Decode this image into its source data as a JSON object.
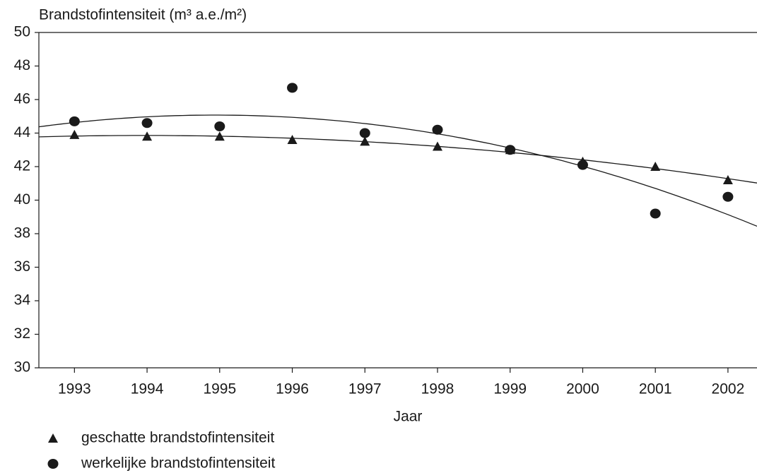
{
  "chart_data": {
    "type": "scatter",
    "title": "Brandstofintensiteit (m³ a.e./m²)",
    "x_label": "Jaar",
    "x": [
      1993,
      1994,
      1995,
      1996,
      1997,
      1998,
      1999,
      2000,
      2001,
      2002
    ],
    "series": [
      {
        "name": "geschatte brandstofintensiteit",
        "color": "#1a1a1a",
        "marker": "triangle",
        "values": [
          43.9,
          43.8,
          43.8,
          43.6,
          43.5,
          43.2,
          43.0,
          42.3,
          42.0,
          41.2
        ]
      },
      {
        "name": "werkelijke brandstofintensiteit",
        "color": "#1a1a1a",
        "marker": "circle",
        "values": [
          44.7,
          44.6,
          44.4,
          46.7,
          44.0,
          44.2,
          43.0,
          42.1,
          39.2,
          40.2
        ]
      }
    ],
    "trendline": "quadratic",
    "xlim": [
      1992.51,
      2002.4
    ],
    "xticks": [
      1993,
      1994,
      1995,
      1996,
      1997,
      1998,
      1999,
      2000,
      2001,
      2002
    ],
    "ylim": [
      30,
      50
    ],
    "yticks": [
      30,
      32,
      34,
      36,
      38,
      40,
      42,
      44,
      46,
      48,
      50
    ],
    "legend": "bottom-left"
  }
}
